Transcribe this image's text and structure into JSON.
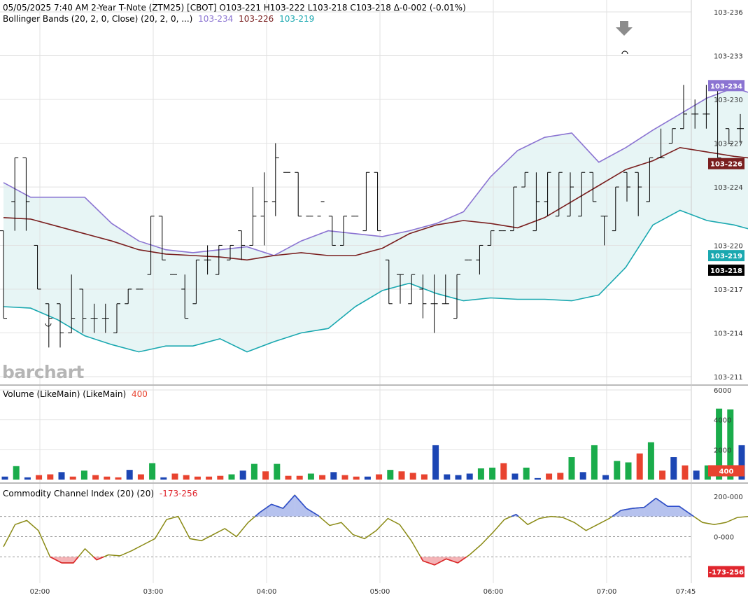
{
  "header": {
    "line1": "05/05/2025  7:40 AM 2-Year T-Note (ZTM25) [CBOT]  O103-221  H103-222  L103-218  C103-218  Δ-0-002 (-0.01%)",
    "bb_label": "Bollinger Bands (20, 2, 0, Close)  (20, 2, 0, ...)",
    "bb_upper": "103-234",
    "bb_mid": "103-226",
    "bb_lower": "103-219"
  },
  "volume_panel": {
    "label": "Volume (LikeMain)  (LikeMain)",
    "value": "400"
  },
  "cci_panel": {
    "label": "Commodity Channel Index (20)  (20)",
    "value": "-173-256"
  },
  "watermark": "barchart",
  "colors": {
    "upper": "#8b74d2",
    "mid": "#7a1f1f",
    "lower": "#1aa8b0",
    "fill": "#e7f5f5",
    "up": "#1aac4b",
    "down": "#e8432f",
    "neutral": "#1c46b4",
    "cci": "#8a8a14",
    "cci_hi": "#2f4fcf",
    "cci_lo": "#e0262e"
  },
  "chart_data": [
    {
      "type": "ohlc",
      "title": "2-Year T-Note (ZTM25) [CBOT]",
      "price_ticks": [
        "103-211",
        "103-214",
        "103-217",
        "103-220",
        "103-224",
        "103-227",
        "103-230",
        "103-233",
        "103-236"
      ],
      "time_ticks": [
        "02:00",
        "03:00",
        "04:00",
        "05:00",
        "06:00",
        "07:00",
        "07:45"
      ],
      "last_labels": {
        "upper": "103-234",
        "mid": "103-226",
        "lower": "103-219",
        "close": "103-218"
      },
      "bars": [
        [
          103.221,
          103.221,
          103.215,
          103.215
        ],
        [
          103.223,
          103.226,
          103.221,
          103.226
        ],
        [
          103.226,
          103.226,
          103.221,
          103.223
        ],
        [
          103.22,
          103.22,
          103.217,
          103.217
        ],
        [
          103.216,
          103.216,
          103.213,
          103.215
        ],
        [
          103.216,
          103.216,
          103.213,
          103.214
        ],
        [
          103.214,
          103.218,
          103.214,
          103.215
        ],
        [
          103.217,
          103.217,
          103.214,
          103.215
        ],
        [
          103.215,
          103.216,
          103.214,
          103.215
        ],
        [
          103.215,
          103.216,
          103.214,
          103.215
        ],
        [
          103.214,
          103.216,
          103.214,
          103.216
        ],
        [
          103.216,
          103.217,
          103.216,
          103.217
        ],
        [
          103.217,
          103.217,
          103.217,
          103.217
        ],
        [
          103.218,
          103.222,
          103.218,
          103.222
        ],
        [
          103.222,
          103.222,
          103.219,
          103.219
        ],
        [
          103.218,
          103.218,
          103.218,
          103.218
        ],
        [
          103.217,
          103.218,
          103.215,
          103.215
        ],
        [
          103.216,
          103.219,
          103.216,
          103.219
        ],
        [
          103.219,
          103.22,
          103.218,
          103.219
        ],
        [
          103.218,
          103.22,
          103.218,
          103.22
        ],
        [
          103.219,
          103.22,
          103.219,
          103.22
        ],
        [
          103.221,
          103.221,
          103.219,
          103.22
        ],
        [
          103.22,
          103.224,
          103.22,
          103.222
        ],
        [
          103.222,
          103.225,
          103.22,
          103.223
        ],
        [
          103.223,
          103.227,
          103.222,
          103.226
        ],
        [
          103.225,
          103.225,
          103.225,
          103.225
        ],
        [
          103.225,
          103.225,
          103.222,
          103.222
        ],
        [
          103.222,
          103.222,
          103.222,
          103.222
        ],
        [
          103.222,
          103.222,
          103.222,
          103.223
        ],
        [
          103.222,
          103.222,
          103.22,
          103.22
        ],
        [
          103.22,
          103.222,
          103.22,
          103.222
        ],
        [
          103.222,
          103.222,
          103.222,
          103.222
        ],
        [
          103.221,
          103.225,
          103.221,
          103.225
        ],
        [
          103.225,
          103.225,
          103.221,
          103.221
        ],
        [
          103.219,
          103.219,
          103.216,
          103.216
        ],
        [
          103.218,
          103.218,
          103.216,
          103.218
        ],
        [
          103.216,
          103.218,
          103.216,
          103.218
        ],
        [
          103.217,
          103.218,
          103.215,
          103.216
        ],
        [
          103.216,
          103.218,
          103.214,
          103.216
        ],
        [
          103.216,
          103.218,
          103.216,
          103.216
        ],
        [
          103.215,
          103.218,
          103.215,
          103.218
        ],
        [
          103.219,
          103.219,
          103.219,
          103.219
        ],
        [
          103.219,
          103.22,
          103.218,
          103.22
        ],
        [
          103.22,
          103.221,
          103.22,
          103.221
        ],
        [
          103.221,
          103.221,
          103.221,
          103.221
        ],
        [
          103.221,
          103.224,
          103.221,
          103.224
        ],
        [
          103.224,
          103.225,
          103.224,
          103.225
        ],
        [
          103.221,
          103.225,
          103.221,
          103.223
        ],
        [
          103.223,
          103.225,
          103.222,
          103.225
        ],
        [
          103.222,
          103.225,
          103.222,
          103.225
        ],
        [
          103.222,
          103.225,
          103.222,
          103.224
        ],
        [
          103.222,
          103.225,
          103.222,
          103.225
        ],
        [
          103.225,
          103.225,
          103.223,
          103.223
        ],
        [
          103.222,
          103.222,
          103.22,
          103.222
        ],
        [
          103.221,
          103.224,
          103.221,
          103.224
        ],
        [
          103.225,
          103.225,
          103.223,
          103.224
        ],
        [
          103.225,
          103.225,
          103.222,
          103.224
        ],
        [
          103.223,
          103.226,
          103.223,
          103.226
        ],
        [
          103.226,
          103.228,
          103.226,
          103.226
        ],
        [
          103.227,
          103.228,
          103.227,
          103.228
        ],
        [
          103.228,
          103.231,
          103.228,
          103.229
        ],
        [
          103.229,
          103.23,
          103.228,
          103.229
        ],
        [
          103.229,
          103.231,
          103.228,
          103.229
        ],
        [
          103.231,
          103.231,
          103.226,
          103.226
        ],
        [
          103.228,
          103.228,
          103.227,
          103.227
        ],
        [
          103.228,
          103.229,
          103.227,
          103.228
        ],
        [
          103.228,
          103.229,
          103.228,
          103.229
        ],
        [
          103.229,
          103.232,
          103.228,
          103.229
        ],
        [
          103.231,
          103.233,
          103.229,
          103.231
        ],
        [
          103.232,
          103.233,
          103.232,
          103.232
        ],
        [
          103.232,
          103.232,
          103.23,
          103.232
        ],
        [
          103.227,
          103.227,
          103.223,
          103.223
        ],
        [
          103.224,
          103.227,
          103.223,
          103.225
        ],
        [
          103.224,
          103.224,
          103.219,
          103.219
        ],
        [
          103.221,
          103.222,
          103.218,
          103.218
        ]
      ],
      "bb_upper": [
        103.2243,
        103.2233,
        103.2233,
        103.2233,
        103.2215,
        103.2203,
        103.2197,
        103.2195,
        103.2197,
        103.2199,
        103.2193,
        103.2203,
        103.221,
        103.2208,
        103.2206,
        103.221,
        103.2215,
        103.2223,
        103.2247,
        103.2265,
        103.2274,
        103.2277,
        103.2257,
        103.2267,
        103.2279,
        103.229,
        103.2301,
        103.2308,
        103.2302,
        103.2305,
        103.2302,
        103.2309
      ],
      "bb_mid": [
        103.2219,
        103.2218,
        103.2213,
        103.2208,
        103.2203,
        103.2197,
        103.2194,
        103.2193,
        103.2192,
        103.219,
        103.2193,
        103.2195,
        103.2193,
        103.2193,
        103.2198,
        103.2208,
        103.2214,
        103.2217,
        103.2215,
        103.2212,
        103.2219,
        103.223,
        103.2241,
        103.2252,
        103.2258,
        103.2267,
        103.2264,
        103.2261,
        103.2259,
        103.2259,
        103.2257,
        103.2256
      ],
      "bb_lower": [
        103.2158,
        103.2157,
        103.2149,
        103.2138,
        103.2132,
        103.2127,
        103.2131,
        103.2131,
        103.2136,
        103.2127,
        103.2134,
        103.214,
        103.2143,
        103.2158,
        103.2169,
        103.2174,
        103.2167,
        103.2162,
        103.2164,
        103.2163,
        103.2163,
        103.2162,
        103.2166,
        103.2185,
        103.2214,
        103.2224,
        103.2217,
        103.2214,
        103.2209,
        103.2215,
        103.2217,
        103.2192
      ]
    },
    {
      "type": "bar",
      "title": "Volume (LikeMain)",
      "ylim": [
        0,
        6000
      ],
      "ticks": [
        "2000",
        "4000",
        "6000"
      ],
      "last_label": "400",
      "values": [
        200,
        900,
        150,
        300,
        350,
        500,
        200,
        600,
        300,
        200,
        150,
        650,
        350,
        1100,
        150,
        400,
        300,
        200,
        200,
        250,
        350,
        600,
        1050,
        550,
        1050,
        250,
        250,
        400,
        300,
        500,
        300,
        200,
        200,
        350,
        650,
        550,
        450,
        350,
        2300,
        350,
        300,
        400,
        750,
        800,
        1100,
        400,
        800,
        100,
        400,
        450,
        1500,
        500,
        2300,
        300,
        1250,
        1150,
        1750,
        2500,
        600,
        1500,
        950,
        600,
        950,
        4750,
        4700,
        2300,
        5100,
        3450,
        3450,
        3950,
        400
      ],
      "colors": [
        "n",
        "u",
        "n",
        "d",
        "d",
        "n",
        "d",
        "u",
        "d",
        "d",
        "d",
        "n",
        "d",
        "u",
        "n",
        "d",
        "d",
        "d",
        "d",
        "d",
        "u",
        "n",
        "u",
        "d",
        "u",
        "d",
        "d",
        "u",
        "d",
        "n",
        "d",
        "d",
        "n",
        "d",
        "u",
        "d",
        "d",
        "d",
        "n",
        "n",
        "n",
        "n",
        "u",
        "u",
        "d",
        "n",
        "u",
        "n",
        "d",
        "d",
        "u",
        "n",
        "u",
        "n",
        "u",
        "u",
        "d",
        "u",
        "d",
        "n",
        "d",
        "n",
        "u",
        "u",
        "u",
        "n",
        "d",
        "d",
        "d",
        "n",
        "d"
      ]
    },
    {
      "type": "line",
      "title": "Commodity Channel Index (20)",
      "ylim": [
        -220,
        220
      ],
      "ticks": [
        "200-000",
        "0-000"
      ],
      "levels": [
        100,
        0,
        -100
      ],
      "last_label": "-173-256",
      "values": [
        -50,
        60,
        80,
        30,
        -100,
        -130,
        -130,
        -60,
        -115,
        -90,
        -95,
        -70,
        -40,
        -10,
        85,
        100,
        -10,
        -20,
        10,
        40,
        0,
        70,
        120,
        160,
        140,
        205,
        140,
        105,
        55,
        70,
        10,
        -10,
        30,
        90,
        60,
        -20,
        -120,
        -140,
        -110,
        -130,
        -90,
        -40,
        20,
        85,
        110,
        60,
        90,
        100,
        95,
        70,
        30,
        60,
        90,
        130,
        140,
        145,
        190,
        150,
        150,
        110,
        70,
        60,
        70,
        95,
        100,
        105,
        145,
        120,
        10,
        -110,
        -160,
        -175,
        -173
      ]
    }
  ]
}
